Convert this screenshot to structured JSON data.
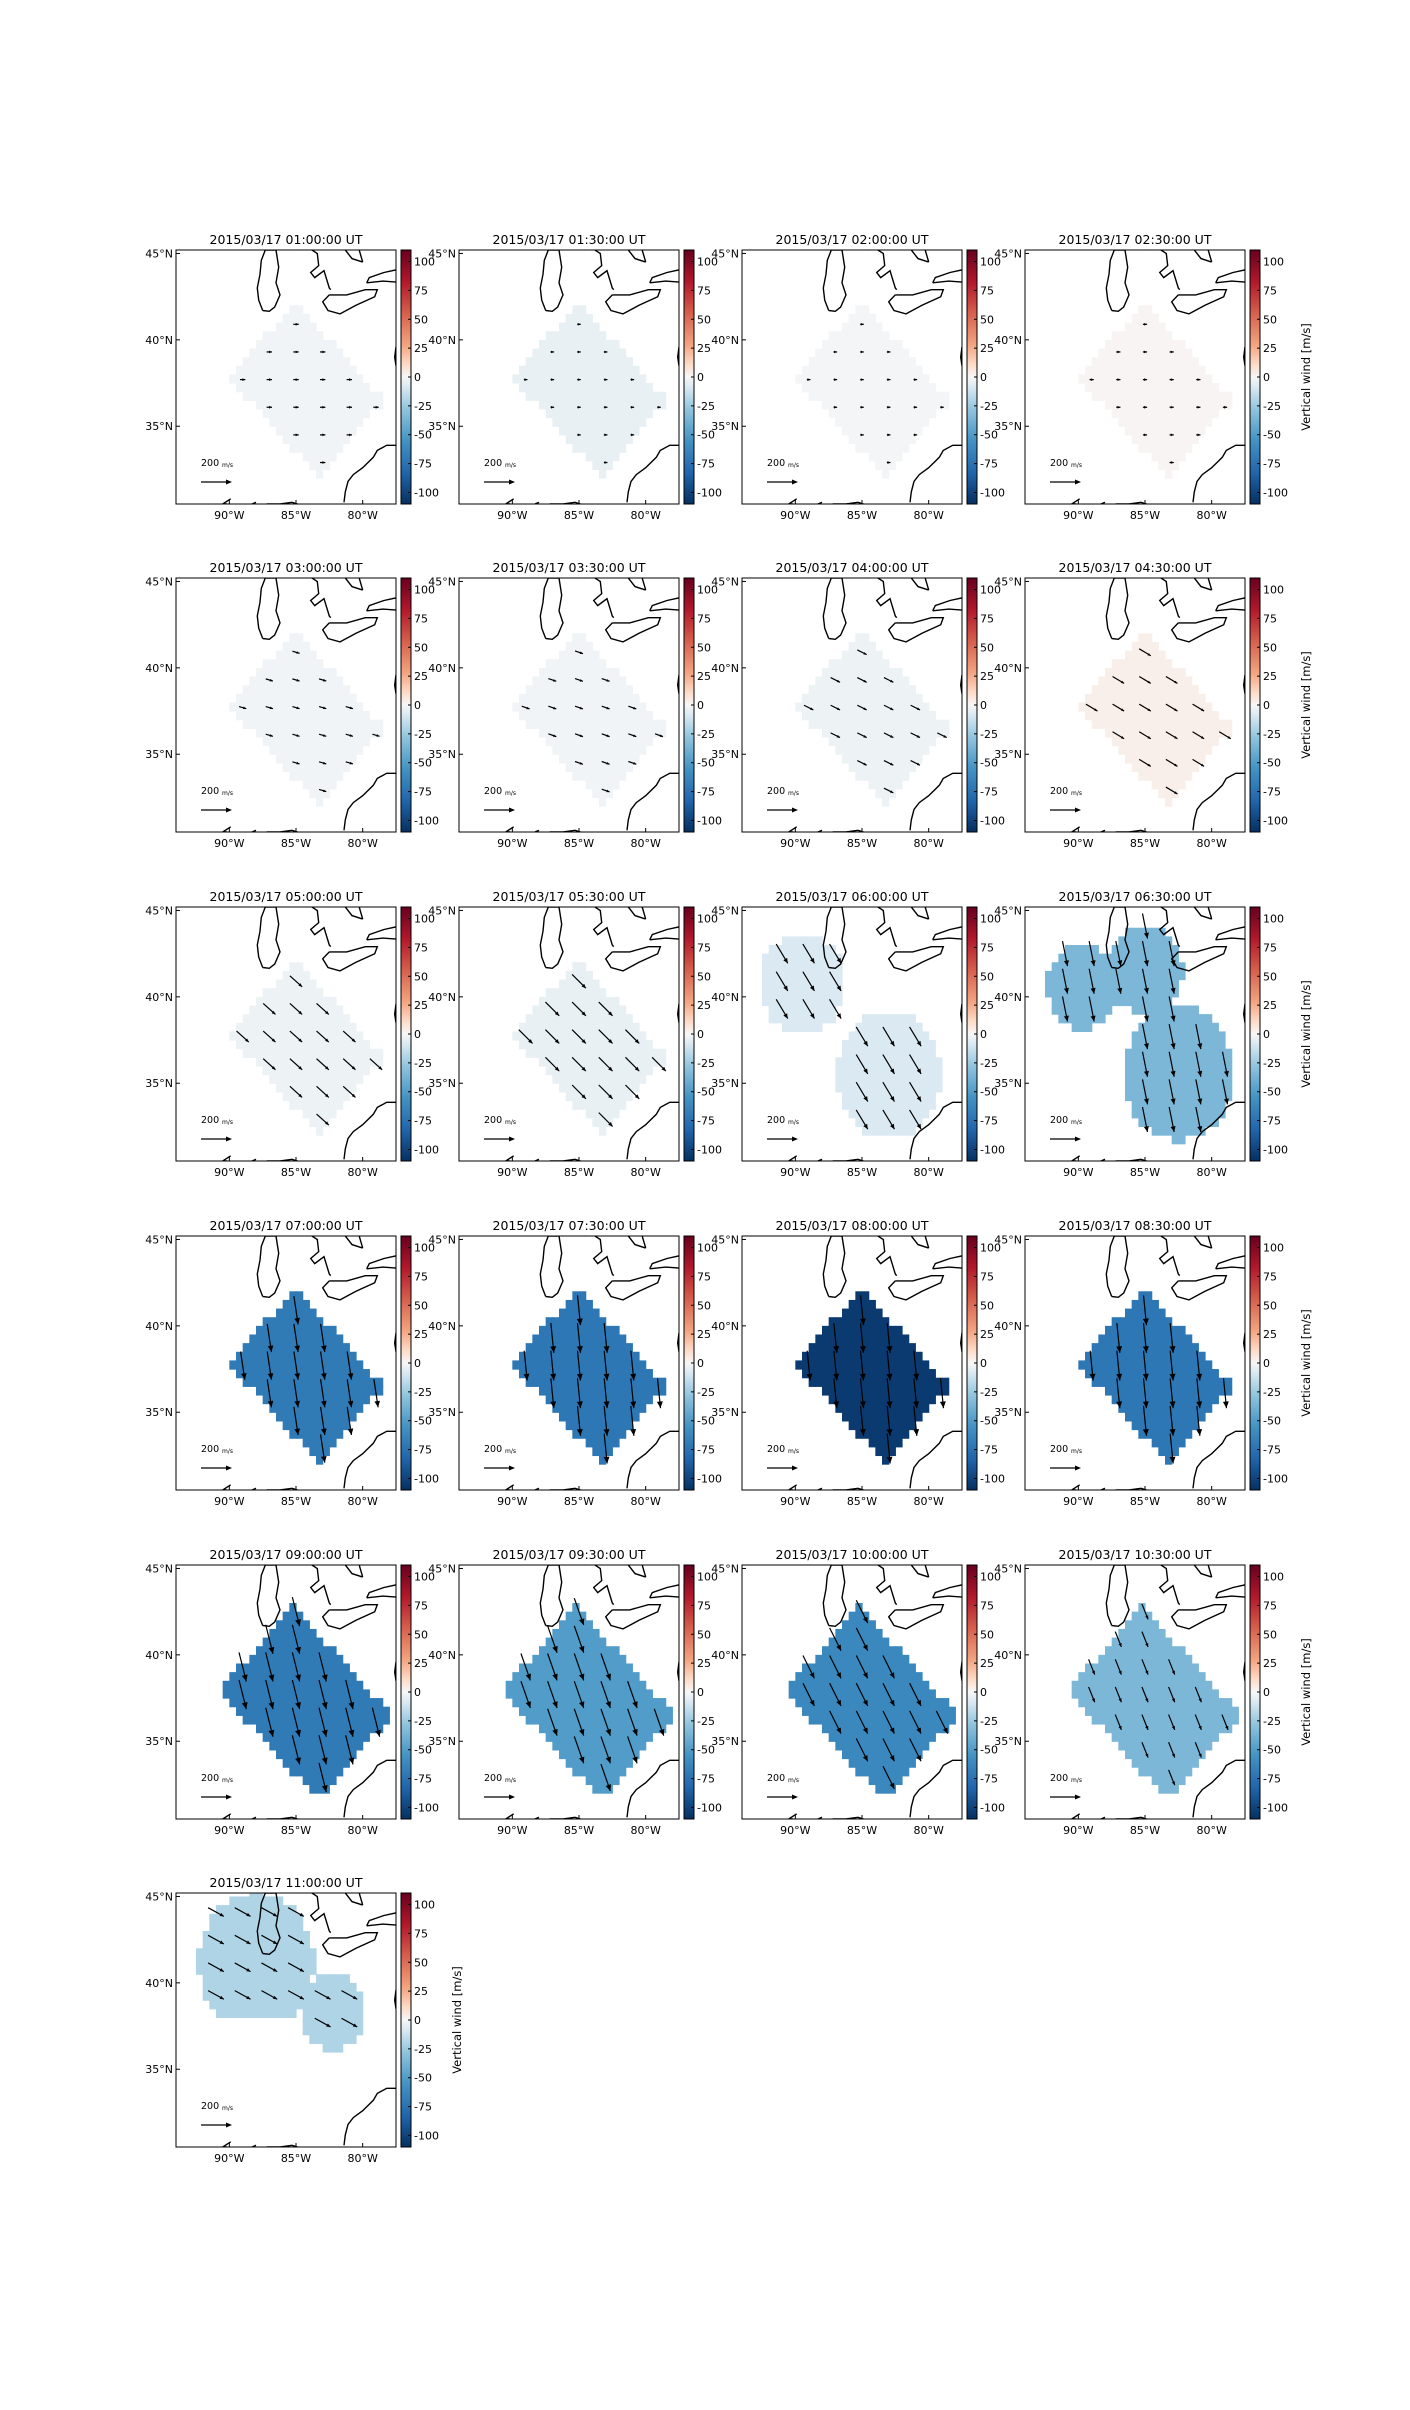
{
  "chart_data": {
    "type": "heatmap",
    "description_free": true,
    "colorbar": {
      "label": "Vertical wind [m/s]",
      "ticks": [
        100,
        75,
        50,
        25,
        0,
        -25,
        -50,
        -75,
        -100
      ],
      "range": [
        -110,
        110
      ],
      "colormap": "RdBu_r"
    },
    "axes": {
      "lat_ticks": [
        "45°N",
        "40°N",
        "35°N"
      ],
      "lon_ticks": [
        "90°W",
        "85°W",
        "80°W"
      ],
      "lat_range": [
        30.5,
        45.2
      ],
      "lon_range": [
        -94,
        -77.5
      ]
    },
    "reference_arrow": {
      "label": "200 m/s",
      "label_text": "200",
      "frac": "m/s"
    },
    "panels": [
      {
        "title": "2015/03/17 01:00:00 UT",
        "value": -2,
        "arrow_dir": [
          1,
          0
        ],
        "arrow_len": 0.18,
        "shape": "full",
        "show_cbar_label": false
      },
      {
        "title": "2015/03/17 01:30:00 UT",
        "value": -4,
        "arrow_dir": [
          1,
          0
        ],
        "arrow_len": 0.12,
        "shape": "full",
        "show_cbar_label": false
      },
      {
        "title": "2015/03/17 02:00:00 UT",
        "value": -1,
        "arrow_dir": [
          1,
          0
        ],
        "arrow_len": 0.12,
        "shape": "full",
        "show_cbar_label": false
      },
      {
        "title": "2015/03/17 02:30:00 UT",
        "value": 1,
        "arrow_dir": [
          1,
          0
        ],
        "arrow_len": 0.14,
        "shape": "full",
        "show_cbar_label": true
      },
      {
        "title": "2015/03/17 03:00:00 UT",
        "value": -2,
        "arrow_dir": [
          1,
          0.3
        ],
        "arrow_len": 0.25,
        "shape": "full",
        "show_cbar_label": false
      },
      {
        "title": "2015/03/17 03:30:00 UT",
        "value": -2,
        "arrow_dir": [
          1,
          0.35
        ],
        "arrow_len": 0.28,
        "shape": "full",
        "show_cbar_label": false
      },
      {
        "title": "2015/03/17 04:00:00 UT",
        "value": -3,
        "arrow_dir": [
          1,
          0.5
        ],
        "arrow_len": 0.35,
        "shape": "full",
        "show_cbar_label": false
      },
      {
        "title": "2015/03/17 04:30:00 UT",
        "value": 3,
        "arrow_dir": [
          1,
          0.6
        ],
        "arrow_len": 0.45,
        "shape": "full",
        "show_cbar_label": true
      },
      {
        "title": "2015/03/17 05:00:00 UT",
        "value": -3,
        "arrow_dir": [
          1,
          0.9
        ],
        "arrow_len": 0.55,
        "shape": "full",
        "show_cbar_label": false
      },
      {
        "title": "2015/03/17 05:30:00 UT",
        "value": -4,
        "arrow_dir": [
          1,
          1
        ],
        "arrow_len": 0.65,
        "shape": "full",
        "show_cbar_label": false
      },
      {
        "title": "2015/03/17 06:00:00 UT",
        "value": -8,
        "arrow_dir": [
          0.6,
          1
        ],
        "arrow_len": 0.75,
        "shape": "split",
        "show_cbar_label": false
      },
      {
        "title": "2015/03/17 06:30:00 UT",
        "value": -35,
        "arrow_dir": [
          0.2,
          1
        ],
        "arrow_len": 0.85,
        "shape": "split2",
        "show_cbar_label": true
      },
      {
        "title": "2015/03/17 07:00:00 UT",
        "value": -70,
        "arrow_dir": [
          0.15,
          1
        ],
        "arrow_len": 0.95,
        "shape": "full",
        "show_cbar_label": false
      },
      {
        "title": "2015/03/17 07:30:00 UT",
        "value": -72,
        "arrow_dir": [
          0.1,
          1
        ],
        "arrow_len": 1.0,
        "shape": "full",
        "show_cbar_label": false
      },
      {
        "title": "2015/03/17 08:00:00 UT",
        "value": -105,
        "arrow_dir": [
          0.1,
          1
        ],
        "arrow_len": 1.0,
        "shape": "full",
        "show_cbar_label": false
      },
      {
        "title": "2015/03/17 08:30:00 UT",
        "value": -72,
        "arrow_dir": [
          0.1,
          1
        ],
        "arrow_len": 1.0,
        "shape": "full",
        "show_cbar_label": true
      },
      {
        "title": "2015/03/17 09:00:00 UT",
        "value": -70,
        "arrow_dir": [
          0.25,
          1
        ],
        "arrow_len": 1.0,
        "shape": "wide",
        "show_cbar_label": false
      },
      {
        "title": "2015/03/17 09:30:00 UT",
        "value": -50,
        "arrow_dir": [
          0.35,
          1
        ],
        "arrow_len": 0.95,
        "shape": "wide",
        "show_cbar_label": false
      },
      {
        "title": "2015/03/17 10:00:00 UT",
        "value": -62,
        "arrow_dir": [
          0.5,
          1
        ],
        "arrow_len": 0.85,
        "shape": "wide",
        "show_cbar_label": false
      },
      {
        "title": "2015/03/17 10:30:00 UT",
        "value": -35,
        "arrow_dir": [
          0.4,
          1
        ],
        "arrow_len": 0.55,
        "shape": "wide",
        "show_cbar_label": true
      },
      {
        "title": "2015/03/17 11:00:00 UT",
        "value": -20,
        "arrow_dir": [
          1,
          0.55
        ],
        "arrow_len": 0.6,
        "shape": "small",
        "show_cbar_label": true
      }
    ]
  }
}
